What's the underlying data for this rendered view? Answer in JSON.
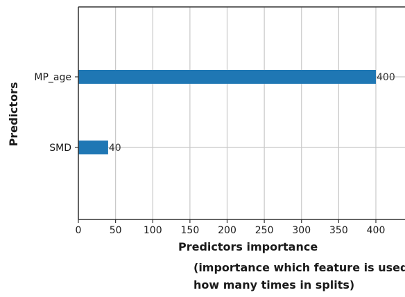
{
  "chart_data": {
    "type": "bar",
    "orientation": "horizontal",
    "categories": [
      "MP_age",
      "SMD"
    ],
    "values": [
      400,
      40
    ],
    "data_labels": [
      "400",
      "40"
    ],
    "xlabel": "Predictors importance",
    "ylabel": "Predictors",
    "xlim": [
      0,
      420
    ],
    "xticks": [
      0,
      50,
      100,
      150,
      200,
      250,
      300,
      350,
      400
    ],
    "grid": true,
    "bar_color": "#1f77b4",
    "annotation": [
      "(importance which feature is used",
      "how many times in splits)"
    ]
  }
}
